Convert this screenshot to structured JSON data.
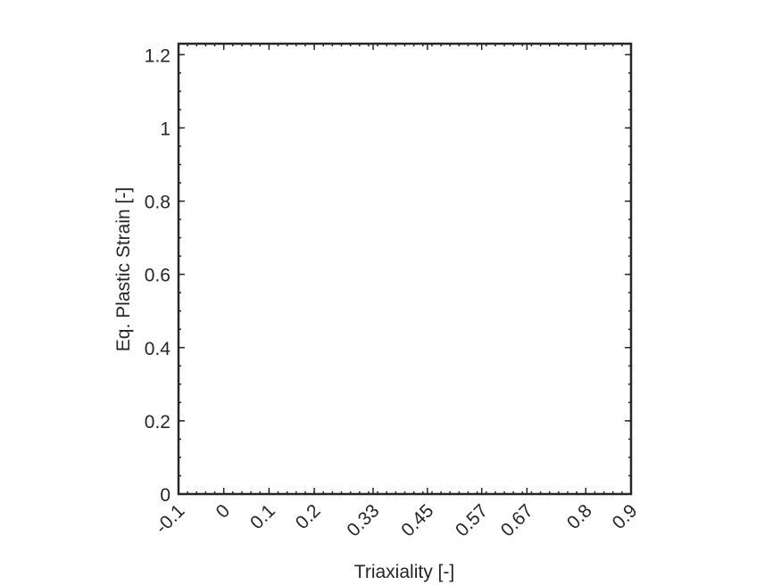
{
  "chart_data": {
    "type": "line",
    "title": "",
    "xlabel": "Triaxiality [-]",
    "ylabel": "Eq. Plastic Strain [-]",
    "xlim": [
      -0.1,
      0.9
    ],
    "ylim": [
      0,
      1.23
    ],
    "x_ticks": [
      -0.1,
      0,
      0.1,
      0.2,
      0.33,
      0.45,
      0.57,
      0.67,
      0.8,
      0.9
    ],
    "x_tick_labels": [
      "-0.1",
      "0",
      "0.1",
      "0.2",
      "0.33",
      "0.45",
      "0.57",
      "0.67",
      "0.8",
      "0.9"
    ],
    "y_ticks": [
      0,
      0.2,
      0.4,
      0.6,
      0.8,
      1,
      1.2
    ],
    "y_tick_labels": [
      "0",
      "0.2",
      "0.4",
      "0.6",
      "0.8",
      "1",
      "1.2"
    ],
    "grid": false,
    "box": true,
    "series": []
  }
}
